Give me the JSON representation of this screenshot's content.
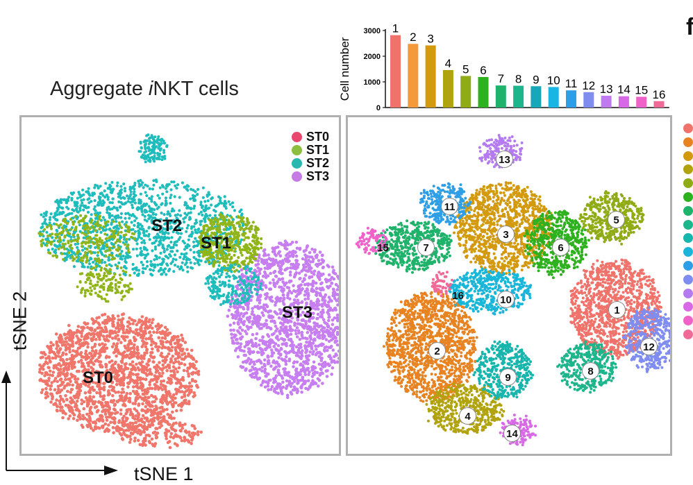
{
  "figure_letter": "f",
  "left_title_prefix": "Aggregate ",
  "left_title_italic": "i",
  "left_title_suffix": "NKT cells",
  "axis": {
    "x_label": "tSNE 1",
    "y_label": "tSNE 2"
  },
  "left_legend": [
    {
      "label": "ST0",
      "color": "#e8476e"
    },
    {
      "label": "ST1",
      "color": "#8cbf3f"
    },
    {
      "label": "ST2",
      "color": "#28b8b0"
    },
    {
      "label": "ST3",
      "color": "#c67be4"
    }
  ],
  "left_clusters": [
    {
      "label": "ST2"
    },
    {
      "label": "ST1"
    },
    {
      "label": "ST3"
    },
    {
      "label": "ST0"
    }
  ],
  "right_clusters": [
    "1",
    "2",
    "3",
    "4",
    "5",
    "6",
    "7",
    "8",
    "9",
    "10",
    "11",
    "12",
    "13",
    "14",
    "15",
    "16"
  ],
  "cluster_colors": [
    "#f0736b",
    "#e88322",
    "#d39a10",
    "#b1a30f",
    "#8fab16",
    "#2eb11e",
    "#1fb26a",
    "#1db58b",
    "#16b6ad",
    "#19b6d9",
    "#2e9fe6",
    "#7f8df0",
    "#b47af0",
    "#d869e6",
    "#ef62c9",
    "#f06a98"
  ],
  "chart_data": [
    {
      "type": "bar",
      "ylabel": "Cell number",
      "ylim": [
        0,
        3000
      ],
      "yticks": [
        0,
        1000,
        2000,
        3000
      ],
      "categories": [
        "1",
        "2",
        "3",
        "4",
        "5",
        "6",
        "7",
        "8",
        "9",
        "10",
        "11",
        "12",
        "13",
        "14",
        "15",
        "16"
      ],
      "values": [
        2820,
        2480,
        2420,
        1460,
        1230,
        1190,
        860,
        850,
        830,
        800,
        670,
        600,
        460,
        440,
        420,
        250
      ],
      "colors": [
        "#f0736b",
        "#f59a39",
        "#d39a10",
        "#b1a30f",
        "#8fab16",
        "#2eb11e",
        "#1fb26a",
        "#1db58b",
        "#16a7b8",
        "#19b6e3",
        "#2e9fe6",
        "#7f8df0",
        "#c07af0",
        "#d869e6",
        "#ef62c9",
        "#f06a98"
      ]
    }
  ]
}
